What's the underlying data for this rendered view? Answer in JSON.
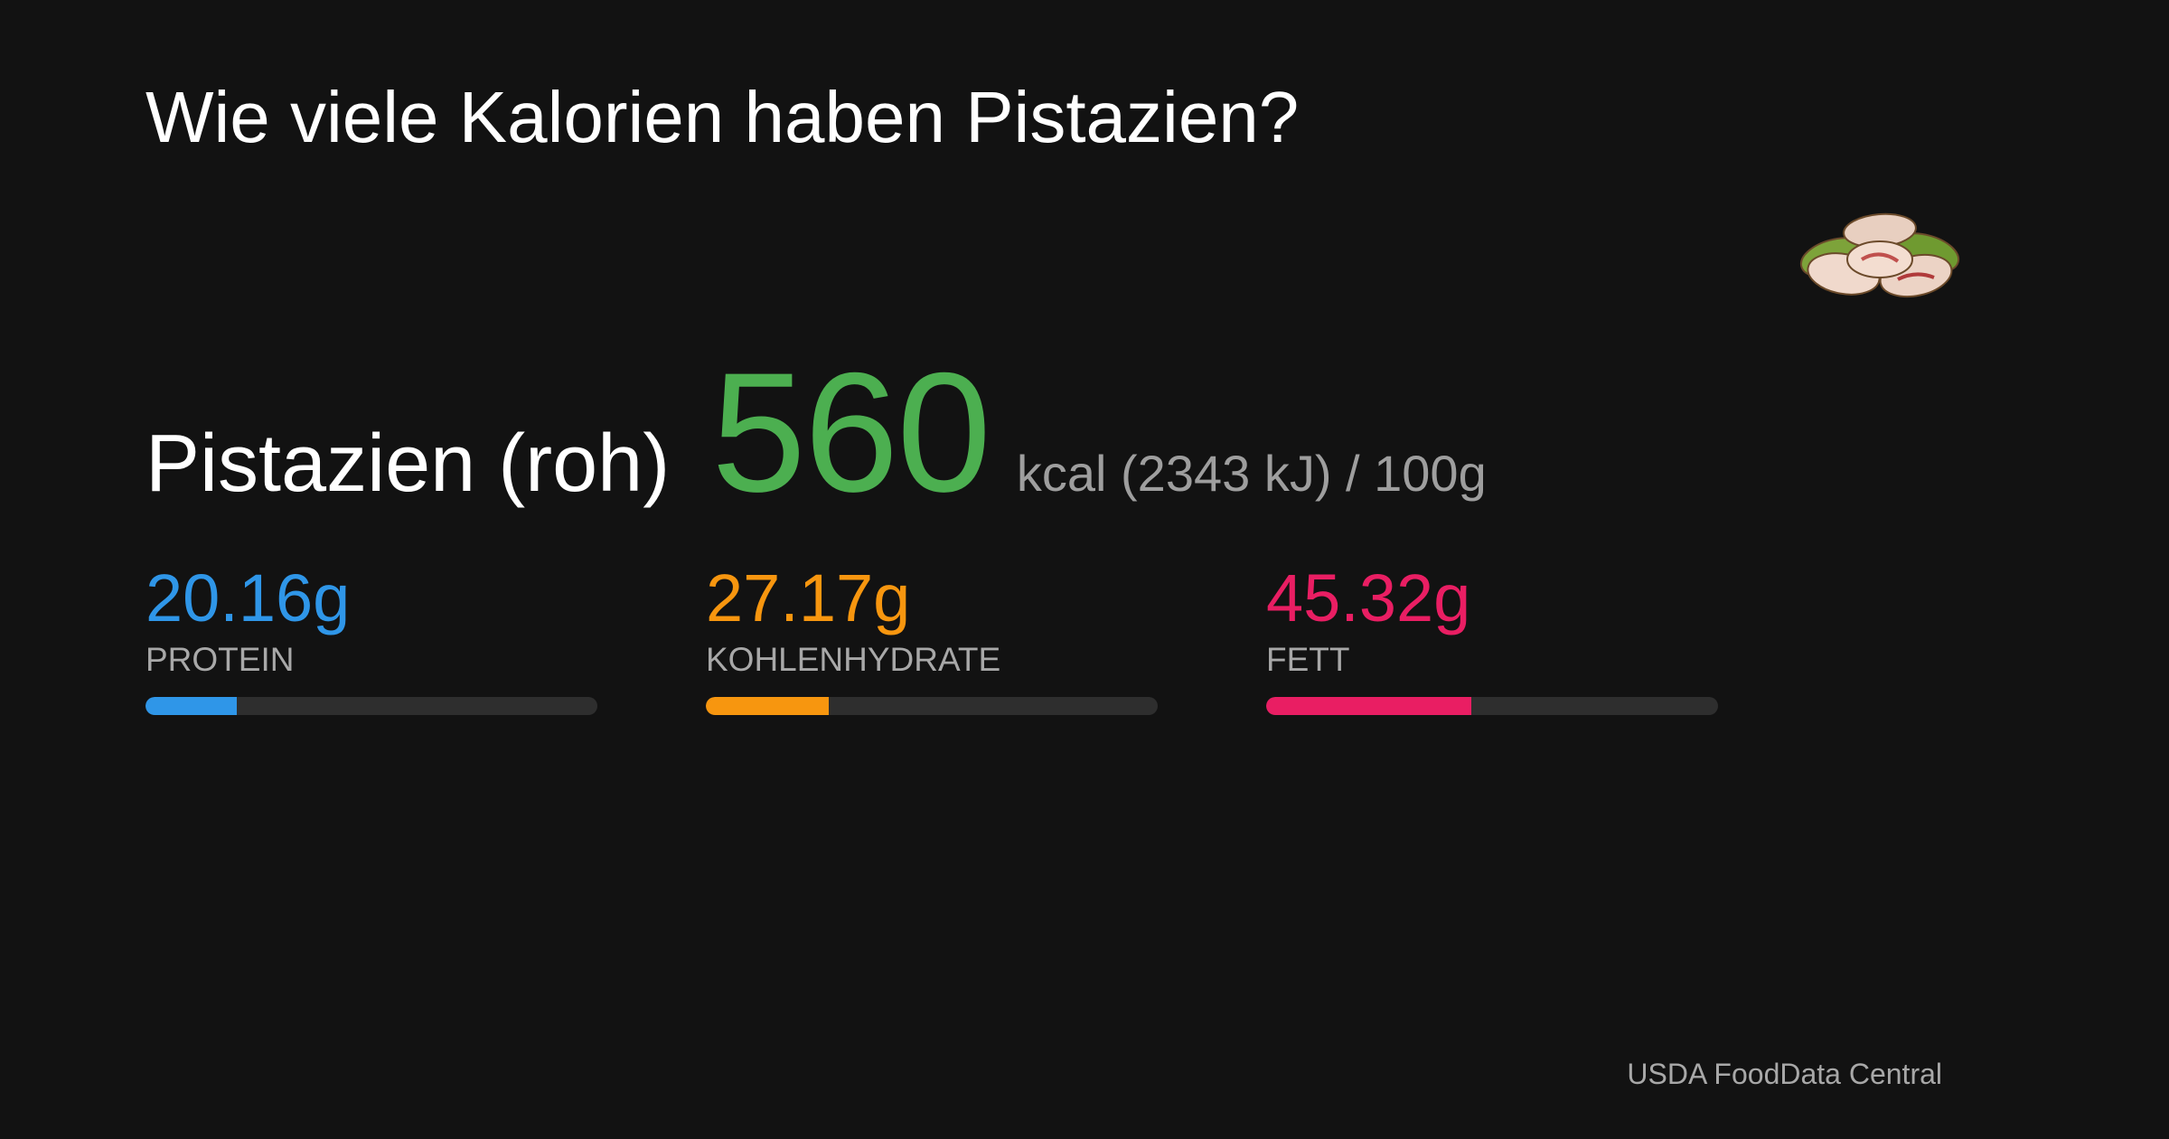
{
  "header": {
    "title": "Wie viele Kalorien haben Pistazien?"
  },
  "food": {
    "name": "Pistazien (roh)",
    "kcal": 560,
    "unit_text": "kcal (2343 kJ) / 100g"
  },
  "macros": {
    "xlim": [
      0,
      100
    ],
    "items": [
      {
        "name": "PROTEIN",
        "value": 20.16,
        "value_label": "20.16g",
        "color": "#2f96e8"
      },
      {
        "name": "KOHLENHYDRATE",
        "value": 27.17,
        "value_label": "27.17g",
        "color": "#f7960f"
      },
      {
        "name": "FETT",
        "value": 45.32,
        "value_label": "45.32g",
        "color": "#e91e63"
      }
    ]
  },
  "footer": {
    "source": "USDA FoodData Central"
  }
}
